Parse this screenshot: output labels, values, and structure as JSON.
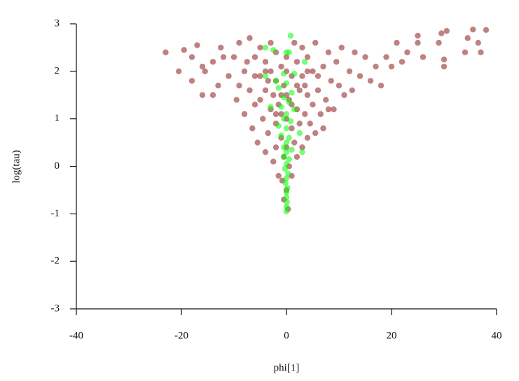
{
  "chart_data": {
    "type": "scatter",
    "x_label": "phi[1]",
    "y_label": "log(tau)",
    "xlim": [
      -40,
      40
    ],
    "xticks": [
      -40,
      -20,
      0,
      20,
      40
    ],
    "ylim": [
      -3,
      3
    ],
    "yticks": [
      -3,
      -2,
      -1,
      0,
      1,
      2,
      3
    ],
    "series": [
      {
        "color": "#8b1a1a",
        "x": [
          -23,
          -20.5,
          -19.5,
          -18,
          -17,
          -16,
          -15.5,
          -14,
          -13,
          -12.5,
          -11,
          -10,
          -9.5,
          -9,
          -8,
          -8,
          -7,
          -7,
          -6.5,
          -6,
          -6,
          -5.5,
          -5,
          -5,
          -4.5,
          -4,
          -4,
          -4,
          -3.5,
          -3,
          -3,
          -3,
          -2.5,
          -2.5,
          -2,
          -2,
          -2,
          -2,
          -1.5,
          -1.5,
          -1,
          -1,
          -1,
          -0.8,
          -0.5,
          -0.5,
          0,
          0,
          0,
          0,
          0.5,
          0.5,
          1,
          1,
          1,
          1.5,
          1.5,
          2,
          2,
          2,
          2.5,
          2.5,
          3,
          3,
          3,
          3.5,
          4,
          4,
          4,
          4.5,
          5,
          5,
          5.5,
          5.5,
          6,
          6.5,
          7,
          7,
          7.5,
          8,
          8.5,
          9,
          9.5,
          10,
          10.5,
          11,
          12,
          12.5,
          13,
          14,
          15,
          16,
          17,
          18,
          19,
          20,
          21,
          22,
          23,
          25,
          25,
          26,
          29,
          29.5,
          30,
          30.5,
          30,
          34,
          34.5,
          35.5,
          36.5,
          37,
          38,
          -16,
          -12,
          -18,
          -14,
          -6,
          -5,
          -3.5,
          -1,
          1,
          3.5,
          6,
          -7.5,
          -9,
          8,
          -2,
          2,
          0,
          -4,
          4,
          0,
          -0.5,
          0.3
        ],
        "values": [
          2.4,
          2.0,
          2.45,
          2.3,
          2.55,
          1.5,
          2.0,
          2.2,
          1.7,
          2.5,
          1.9,
          2.3,
          1.4,
          2.6,
          1.1,
          2.0,
          2.7,
          1.6,
          0.8,
          2.3,
          1.3,
          0.5,
          1.9,
          2.5,
          1.0,
          0.3,
          1.6,
          2.2,
          0.7,
          1.2,
          2.0,
          2.6,
          0.1,
          1.5,
          0.4,
          0.9,
          1.8,
          2.4,
          -0.2,
          1.3,
          0.6,
          1.1,
          2.1,
          -0.3,
          0.2,
          1.7,
          -0.5,
          0.4,
          1.0,
          2.3,
          0.0,
          1.4,
          -0.2,
          0.8,
          1.9,
          0.5,
          2.6,
          0.2,
          1.2,
          2.2,
          0.9,
          1.6,
          0.4,
          1.9,
          2.5,
          1.1,
          0.6,
          1.5,
          2.3,
          0.9,
          1.3,
          2.0,
          0.7,
          2.6,
          1.6,
          1.1,
          2.1,
          0.8,
          1.4,
          2.4,
          1.8,
          1.2,
          2.2,
          1.7,
          2.5,
          1.5,
          2.0,
          1.6,
          2.4,
          1.9,
          2.3,
          1.8,
          2.1,
          1.7,
          2.3,
          2.1,
          2.6,
          2.2,
          2.4,
          2.6,
          2.75,
          2.3,
          2.6,
          2.8,
          2.25,
          2.85,
          2.1,
          2.4,
          2.7,
          2.88,
          2.6,
          2.4,
          2.87,
          2.1,
          2.3,
          1.8,
          1.5,
          1.9,
          1.4,
          1.8,
          1.5,
          1.3,
          1.7,
          1.9,
          2.2,
          1.7,
          1.2,
          1.1,
          1.7,
          1.5,
          2.0,
          2.0,
          2.0,
          -0.7,
          -0.9
        ]
      },
      {
        "color": "#00ff00",
        "x": [
          0.8,
          -4,
          -2.5,
          0,
          0.5,
          3.5,
          -0.5,
          1.5,
          -4,
          -2,
          0,
          -1.5,
          1,
          -0.5,
          0.5,
          -1,
          -3,
          1.5,
          0,
          -0.5,
          0.8,
          -1.5,
          0,
          2.5,
          -1,
          0.5,
          0,
          -0.5,
          1,
          3,
          0,
          -0.5,
          0.5,
          0,
          -0.3,
          0.3,
          0,
          -0.2,
          0.2,
          0,
          0,
          0.1,
          0,
          0
        ],
        "values": [
          2.75,
          2.5,
          2.45,
          2.4,
          2.4,
          2.2,
          1.95,
          1.95,
          1.9,
          1.8,
          1.75,
          1.65,
          1.55,
          1.45,
          1.35,
          1.25,
          1.25,
          1.2,
          1.1,
          1.0,
          0.95,
          0.85,
          0.8,
          0.7,
          0.65,
          0.6,
          0.5,
          0.4,
          0.35,
          0.3,
          0.3,
          0.2,
          0.15,
          0.05,
          -0.05,
          -0.15,
          -0.25,
          -0.35,
          -0.45,
          -0.55,
          -0.65,
          -0.75,
          -0.85,
          -0.95
        ]
      }
    ]
  }
}
